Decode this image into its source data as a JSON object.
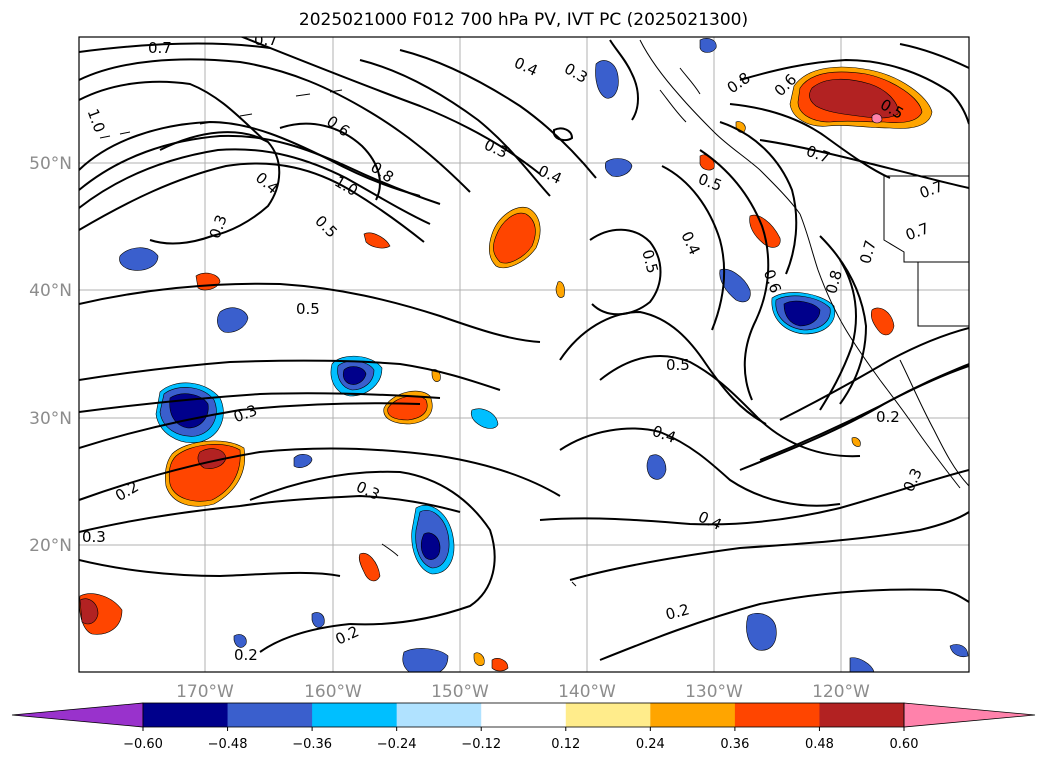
{
  "title": "2025021000 F012 700 hPa PV, IVT PC (2025021300)",
  "latitude_labels": [
    "50°N",
    "40°N",
    "30°N",
    "20°N"
  ],
  "longitude_labels": [
    "170°W",
    "160°W",
    "150°W",
    "140°W",
    "130°W",
    "120°W"
  ],
  "contour_labels": [
    "0.7",
    "0.7",
    "1.0",
    "0.6",
    "0.8",
    "1.0",
    "0.4",
    "0.5",
    "0.3",
    "0.4",
    "0.3",
    "0.3",
    "0.4",
    "0.8",
    "0.6",
    "0.5",
    "0.5",
    "0.4",
    "0.7",
    "0.7",
    "0.7",
    "0.6",
    "0.8",
    "0.7",
    "0.5",
    "0.5",
    "0.5",
    "0.3",
    "0.2",
    "0.4",
    "0.3",
    "0.4",
    "0.2",
    "0.3",
    "0.2",
    "0.2",
    "0.2",
    "0.3"
  ],
  "colorbar": {
    "ticks": [
      "−0.60",
      "−0.48",
      "−0.36",
      "−0.24",
      "−0.12",
      "0.12",
      "0.24",
      "0.36",
      "0.48",
      "0.60"
    ],
    "colors": [
      "#9932cc",
      "#00008b",
      "#3a5fcd",
      "#00bfff",
      "#b0e2ff",
      "#ffffff",
      "#ffec8b",
      "#ffa500",
      "#ff4500",
      "#b22222",
      "#ff82ab"
    ]
  }
}
